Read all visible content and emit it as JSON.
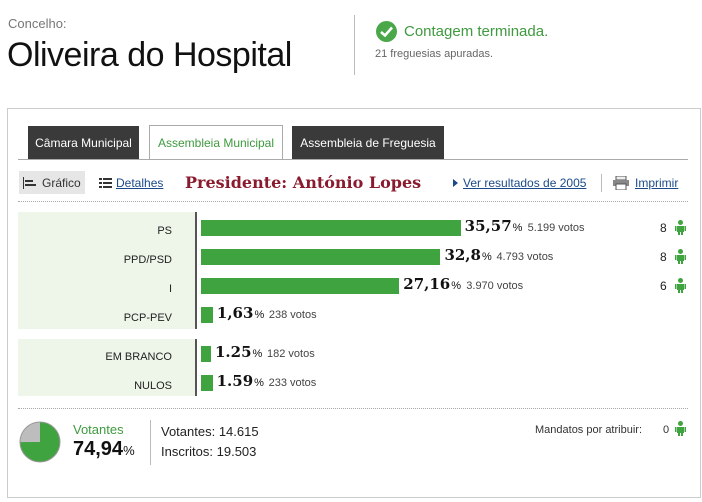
{
  "header": {
    "label": "Concelho:",
    "title": "Oliveira do Hospital",
    "status": "Contagem terminada.",
    "status_sub": "21 freguesias apuradas."
  },
  "tabs": [
    {
      "label": "Câmara Municipal"
    },
    {
      "label": "Assembleia Municipal"
    },
    {
      "label": "Assembleia de Freguesia"
    }
  ],
  "toolbar": {
    "grafico": "Gráfico",
    "detalhes": "Detalhes",
    "president": "Presidente: António Lopes",
    "ver_resultados": "Ver resultados de 2005",
    "imprimir": "Imprimir"
  },
  "parties": [
    {
      "name": "PS",
      "pct": "35,57",
      "pct_value": 35.57,
      "votos": "5.199 votos",
      "mandatos": "8"
    },
    {
      "name": "PPD/PSD",
      "pct": "32,8",
      "pct_value": 32.8,
      "votos": "4.793 votos",
      "mandatos": "8"
    },
    {
      "name": "I",
      "pct": "27,16",
      "pct_value": 27.16,
      "votos": "3.970 votos",
      "mandatos": "6"
    },
    {
      "name": "PCP-PEV",
      "pct": "1,63",
      "pct_value": 1.63,
      "votos": "238 votos",
      "mandatos": ""
    }
  ],
  "others": [
    {
      "name": "EM BRANCO",
      "pct": "1.25",
      "pct_value": 1.25,
      "votos": "182 votos"
    },
    {
      "name": "NULOS",
      "pct": "1.59",
      "pct_value": 1.59,
      "votos": "233 votos"
    }
  ],
  "pct_sign": "%",
  "footer": {
    "votantes_label": "Votantes",
    "votantes_pct": "74,94",
    "votantes_value": 74.94,
    "votantes": "Votantes: 14.615",
    "inscritos": "Inscritos: 19.503",
    "mandatos_label": "Mandatos por atribuir:",
    "mandatos_value": "0"
  },
  "colors": {
    "accent": "#3fa33f",
    "president": "#8a1a2e",
    "link": "#1b4a8a",
    "tab_dark": "#3a3a3a"
  }
}
